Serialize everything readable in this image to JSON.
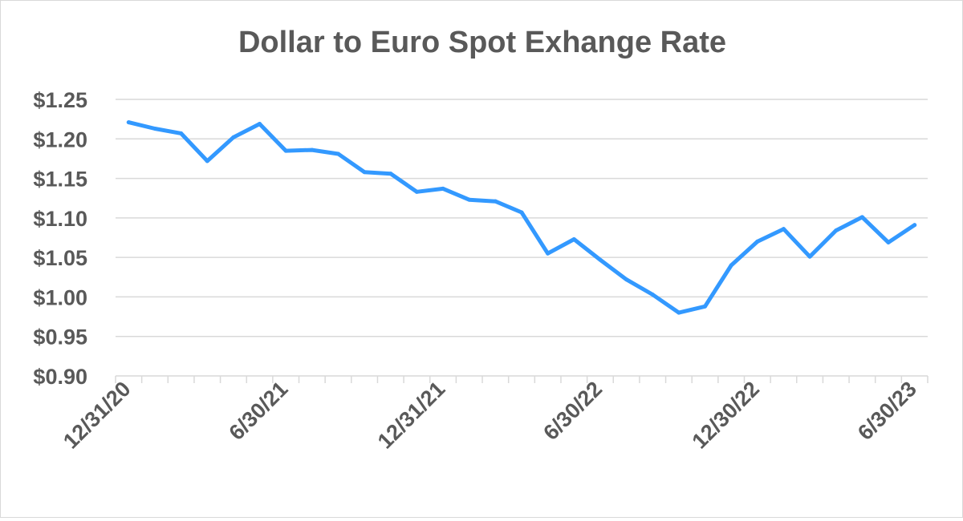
{
  "chart_data": {
    "type": "line",
    "title": "Dollar to Euro Spot Exhange Rate",
    "xlabel": "",
    "ylabel": "",
    "x": [
      "12/31/20",
      "1/31/21",
      "2/28/21",
      "3/31/21",
      "4/30/21",
      "5/31/21",
      "6/30/21",
      "7/31/21",
      "8/31/21",
      "9/30/21",
      "10/31/21",
      "11/30/21",
      "12/31/21",
      "1/31/22",
      "2/28/22",
      "3/31/22",
      "4/30/22",
      "5/31/22",
      "6/30/22",
      "7/31/22",
      "8/31/22",
      "9/30/22",
      "10/31/22",
      "11/30/22",
      "12/30/22",
      "1/31/23",
      "2/28/23",
      "3/31/23",
      "4/30/23",
      "5/31/23",
      "6/30/23"
    ],
    "x_tick_labels": [
      "12/31/20",
      "6/30/21",
      "12/31/21",
      "6/30/22",
      "12/30/22",
      "6/30/23"
    ],
    "series": [
      {
        "values": [
          1.221,
          1.213,
          1.207,
          1.172,
          1.202,
          1.219,
          1.185,
          1.186,
          1.181,
          1.158,
          1.156,
          1.133,
          1.137,
          1.123,
          1.121,
          1.107,
          1.055,
          1.073,
          1.047,
          1.022,
          1.003,
          0.98,
          0.988,
          1.04,
          1.07,
          1.086,
          1.051,
          1.084,
          1.101,
          1.069,
          1.091
        ],
        "color": "#3399ff"
      }
    ],
    "y_tick_labels": [
      "$0.90",
      "$0.95",
      "$1.00",
      "$1.05",
      "$1.10",
      "$1.15",
      "$1.20",
      "$1.25"
    ],
    "yticks": [
      0.9,
      0.95,
      1.0,
      1.05,
      1.1,
      1.15,
      1.2,
      1.25
    ],
    "ylim": [
      0.9,
      1.25
    ],
    "grid": true,
    "legend": "none",
    "colors": {
      "line": "#3399ff",
      "grid": "#d9d9d9",
      "text": "#595959"
    }
  }
}
